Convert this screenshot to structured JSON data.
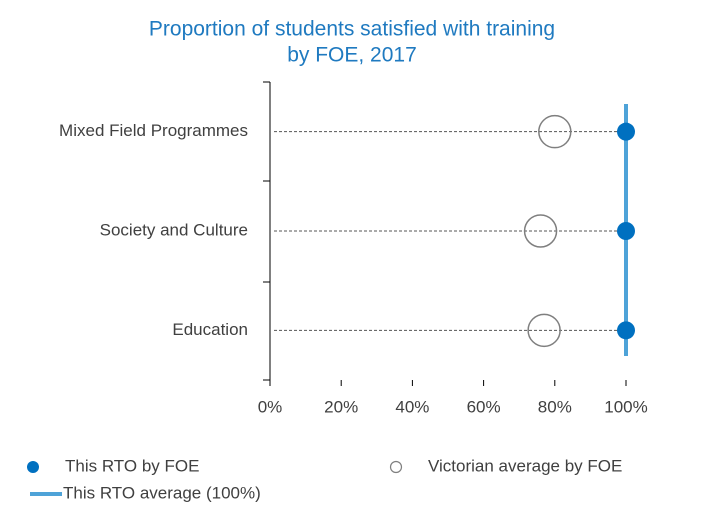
{
  "chart_data": {
    "type": "dot",
    "title": [
      "Proportion of students satisfied with training",
      "by FOE, 2017"
    ],
    "categories": [
      "Mixed Field Programmes",
      "Society and Culture",
      "Education"
    ],
    "series": [
      {
        "name": "This RTO by FOE",
        "color": "#0070c0",
        "values": [
          100,
          100,
          100
        ]
      },
      {
        "name": "Victorian average by FOE",
        "color": "#7f7f7f",
        "values": [
          80,
          76,
          77
        ]
      }
    ],
    "reference_line": {
      "name": "This RTO average (100%)",
      "value": 100,
      "color": "#4ea3d8"
    },
    "xlim": [
      0,
      100
    ],
    "xticks": [
      {
        "value": 0,
        "label": "0%"
      },
      {
        "value": 20,
        "label": "20%"
      },
      {
        "value": 40,
        "label": "40%"
      },
      {
        "value": 60,
        "label": "60%"
      },
      {
        "value": 80,
        "label": "80%"
      },
      {
        "value": 100,
        "label": "100%"
      }
    ]
  }
}
